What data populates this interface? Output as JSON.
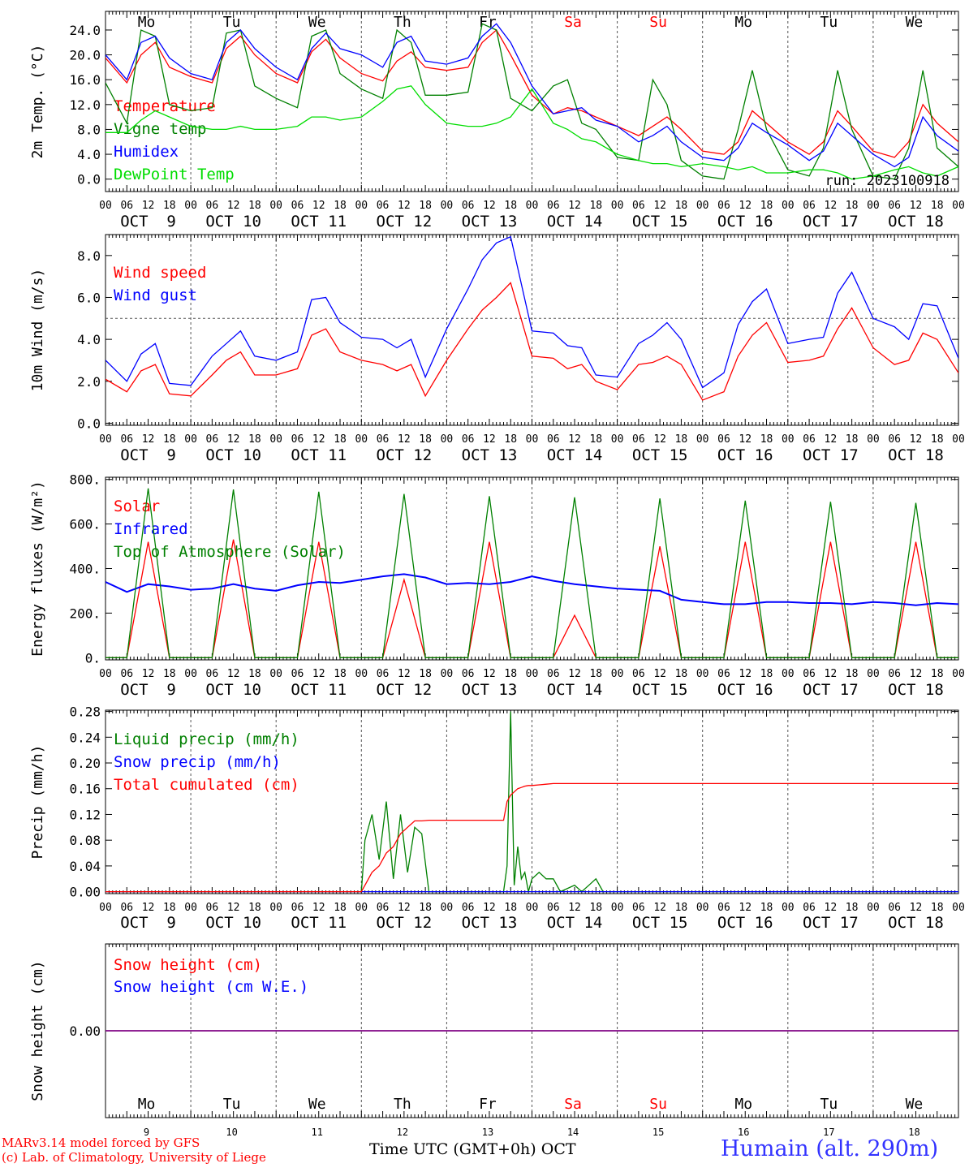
{
  "credits": [
    "MARv3.14 model forced by GFS",
    "(c) Lab. of Climatology, University of Liege"
  ],
  "station": "Humain (alt. 290m)",
  "xaxis_label": "Time UTC (GMT+0h)",
  "month": "OCT",
  "run_label": "run: 2023100918",
  "days": [
    {
      "weekday": "Mo",
      "date": "OCT  9",
      "num": "9",
      "weekend": false
    },
    {
      "weekday": "Tu",
      "date": "OCT 10",
      "num": "10",
      "weekend": false
    },
    {
      "weekday": "We",
      "date": "OCT 11",
      "num": "11",
      "weekend": false
    },
    {
      "weekday": "Th",
      "date": "OCT 12",
      "num": "12",
      "weekend": false
    },
    {
      "weekday": "Fr",
      "date": "OCT 13",
      "num": "13",
      "weekend": false
    },
    {
      "weekday": "Sa",
      "date": "OCT 14",
      "num": "14",
      "weekend": true
    },
    {
      "weekday": "Su",
      "date": "OCT 15",
      "num": "15",
      "weekend": true
    },
    {
      "weekday": "Mo",
      "date": "OCT 16",
      "num": "16",
      "weekend": false
    },
    {
      "weekday": "Tu",
      "date": "OCT 17",
      "num": "17",
      "weekend": false
    },
    {
      "weekday": "We",
      "date": "OCT 18",
      "num": "18",
      "weekend": false
    }
  ],
  "hour_ticks": [
    "00",
    "06",
    "12",
    "18"
  ],
  "final_tick": "00",
  "colors": {
    "red": "#ff0000",
    "blue": "#0000ff",
    "green": "#008000",
    "lightgreen": "#00dd00",
    "purple": "#800080",
    "station": "#3333ff",
    "weekday": "#000000",
    "weekend": "#ff0000"
  },
  "chart_data": [
    {
      "type": "line",
      "ylabel": "2m Temp. (°C)",
      "ylim": [
        -2,
        27
      ],
      "yticks": [
        "0.0",
        "4.0",
        "8.0",
        "12.0",
        "16.0",
        "20.0",
        "24.0"
      ],
      "ytick_values": [
        0,
        4,
        8,
        12,
        16,
        20,
        24
      ],
      "weekday_labels": "top",
      "x_hours": [
        0,
        6,
        10,
        14,
        18,
        24,
        30,
        34,
        38,
        42,
        48,
        54,
        58,
        62,
        66,
        72,
        78,
        82,
        86,
        90,
        96,
        102,
        106,
        110,
        114,
        120,
        126,
        130,
        134,
        138,
        144,
        150,
        154,
        158,
        162,
        168,
        174,
        178,
        182,
        186,
        192,
        198,
        202,
        206,
        210,
        216,
        222,
        226,
        230,
        234,
        240
      ],
      "series": [
        {
          "name": "Temperature",
          "color": "#ff0000",
          "values": [
            19.5,
            15.5,
            20,
            22,
            18,
            16.5,
            15.5,
            21,
            23,
            20,
            17,
            15.5,
            20.5,
            22.5,
            19.5,
            17,
            15.8,
            19,
            20.5,
            18,
            17.5,
            18,
            22,
            24,
            20,
            13.5,
            10.5,
            11.5,
            11,
            10,
            8.5,
            7,
            8.5,
            10,
            8,
            4.5,
            4,
            6,
            11,
            9,
            6,
            4,
            6,
            11,
            8.5,
            4.5,
            3.5,
            6,
            12,
            9,
            6
          ]
        },
        {
          "name": "Vigne temp",
          "color": "#008000",
          "values": [
            15.5,
            9,
            24,
            23,
            12,
            11,
            11.5,
            23.5,
            24,
            15,
            13,
            11.5,
            23,
            24,
            17,
            14.5,
            13,
            24,
            22,
            13.5,
            13.5,
            14,
            25,
            24,
            13,
            11,
            15,
            16,
            9,
            8,
            3.5,
            3,
            16,
            12,
            3,
            0.5,
            0,
            8,
            17.5,
            8,
            1.5,
            0.5,
            5,
            17.5,
            8,
            0.5,
            0,
            5,
            17.5,
            5,
            2
          ]
        },
        {
          "name": "Humidex",
          "color": "#0000ff",
          "values": [
            20,
            16,
            22,
            23,
            19.5,
            17,
            16,
            22,
            24,
            21,
            18,
            16,
            21,
            23.5,
            21,
            20,
            18,
            22,
            23,
            19,
            18.5,
            19.5,
            23,
            25,
            22,
            15,
            10.5,
            11,
            11.5,
            9.5,
            8.5,
            6,
            7,
            8.5,
            6,
            3.5,
            3,
            5,
            9,
            7.5,
            5.5,
            3,
            4.5,
            9,
            7,
            4,
            2,
            3.5,
            10,
            7,
            4.5
          ]
        },
        {
          "name": "DewPoint Temp",
          "color": "#00dd00",
          "values": [
            7.5,
            7.5,
            9.5,
            11,
            10,
            8.5,
            8,
            8,
            8.5,
            8,
            8,
            8.5,
            10,
            10,
            9.5,
            10,
            12.5,
            14.5,
            15,
            12,
            9,
            8.5,
            8.5,
            9,
            10,
            14.5,
            9,
            8,
            6.5,
            6,
            4,
            3,
            2.5,
            2.5,
            2,
            2.5,
            2,
            1.5,
            2,
            1,
            1,
            1.5,
            1.5,
            1,
            0,
            0.5,
            1.5,
            2,
            1,
            0.5,
            2
          ]
        }
      ]
    },
    {
      "type": "line",
      "ylabel": "10m Wind (m/s)",
      "ylim": [
        -0.1,
        9
      ],
      "yticks": [
        "0.0",
        "2.0",
        "4.0",
        "6.0",
        "8.0"
      ],
      "ytick_values": [
        0,
        2,
        4,
        6,
        8
      ],
      "reference_line": 5,
      "x_hours": [
        0,
        6,
        10,
        14,
        18,
        24,
        30,
        34,
        38,
        42,
        48,
        54,
        58,
        62,
        66,
        72,
        78,
        82,
        86,
        90,
        96,
        102,
        106,
        110,
        114,
        120,
        126,
        130,
        134,
        138,
        144,
        150,
        154,
        158,
        162,
        168,
        174,
        178,
        182,
        186,
        192,
        198,
        202,
        206,
        210,
        216,
        222,
        226,
        230,
        234,
        240
      ],
      "series": [
        {
          "name": "Wind speed",
          "color": "#ff0000",
          "values": [
            2.1,
            1.5,
            2.5,
            2.8,
            1.4,
            1.3,
            2.3,
            3,
            3.4,
            2.3,
            2.3,
            2.6,
            4.2,
            4.5,
            3.4,
            3,
            2.8,
            2.5,
            2.8,
            1.3,
            3,
            4.5,
            5.4,
            6,
            6.7,
            3.2,
            3.1,
            2.6,
            2.8,
            2,
            1.6,
            2.8,
            2.9,
            3.2,
            2.8,
            1.1,
            1.5,
            3.2,
            4.2,
            4.8,
            2.9,
            3,
            3.2,
            4.5,
            5.5,
            3.6,
            2.8,
            3,
            4.3,
            4,
            2.4
          ]
        },
        {
          "name": "Wind gust",
          "color": "#0000ff",
          "values": [
            3,
            2,
            3.3,
            3.8,
            1.9,
            1.8,
            3.2,
            3.8,
            4.4,
            3.2,
            3,
            3.4,
            5.9,
            6,
            4.8,
            4.1,
            4,
            3.6,
            4,
            2.2,
            4.5,
            6.4,
            7.8,
            8.6,
            8.9,
            4.4,
            4.3,
            3.7,
            3.6,
            2.3,
            2.2,
            3.8,
            4.2,
            4.8,
            4,
            1.7,
            2.4,
            4.7,
            5.8,
            6.4,
            3.8,
            4,
            4.1,
            6.2,
            7.2,
            5,
            4.6,
            4,
            5.7,
            5.6,
            3.1
          ]
        }
      ]
    },
    {
      "type": "line",
      "ylabel": "Energy fluxes (W/m²)",
      "ylim": [
        -10,
        810
      ],
      "yticks": [
        "0.",
        "200.",
        "400.",
        "600.",
        "800."
      ],
      "ytick_values": [
        0,
        200,
        400,
        600,
        800
      ],
      "x_hours": [
        0,
        6,
        12,
        18,
        24,
        30,
        36,
        42,
        48,
        54,
        60,
        66,
        72,
        78,
        84,
        90,
        96,
        102,
        108,
        114,
        120,
        126,
        132,
        138,
        144,
        150,
        156,
        162,
        168,
        174,
        180,
        186,
        192,
        198,
        204,
        210,
        216,
        222,
        228,
        234,
        240
      ],
      "series": [
        {
          "name": "Solar",
          "color": "#ff0000",
          "values": [
            0,
            0,
            520,
            0,
            0,
            0,
            530,
            0,
            0,
            0,
            520,
            0,
            0,
            0,
            350,
            0,
            0,
            0,
            520,
            0,
            0,
            0,
            190,
            0,
            0,
            0,
            500,
            0,
            0,
            0,
            520,
            0,
            0,
            0,
            520,
            0,
            0,
            0,
            520,
            0,
            0
          ]
        },
        {
          "name": "Infrared",
          "color": "#0000ff",
          "values": [
            340,
            295,
            330,
            320,
            305,
            310,
            330,
            310,
            300,
            325,
            340,
            335,
            350,
            365,
            375,
            360,
            330,
            335,
            330,
            340,
            365,
            345,
            330,
            320,
            310,
            305,
            300,
            260,
            250,
            240,
            240,
            250,
            250,
            245,
            245,
            240,
            250,
            245,
            235,
            245,
            240
          ]
        },
        {
          "name": "Top of Atmosphere (Solar)",
          "color": "#008000",
          "values": [
            0,
            0,
            760,
            0,
            0,
            0,
            755,
            0,
            0,
            0,
            745,
            0,
            0,
            0,
            735,
            0,
            0,
            0,
            725,
            0,
            0,
            0,
            720,
            0,
            0,
            0,
            715,
            0,
            0,
            0,
            705,
            0,
            0,
            0,
            700,
            0,
            0,
            0,
            695,
            0,
            0
          ]
        }
      ]
    },
    {
      "type": "line",
      "ylabel": "Precip (mm/h)",
      "ylim": [
        -0.003,
        0.282
      ],
      "yticks": [
        "0.00",
        "0.04",
        "0.08",
        "0.12",
        "0.16",
        "0.20",
        "0.24",
        "0.28"
      ],
      "ytick_values": [
        0,
        0.04,
        0.08,
        0.12,
        0.16,
        0.2,
        0.24,
        0.28
      ],
      "x_hours": [
        0,
        72,
        73,
        75,
        77,
        79,
        81,
        83,
        85,
        87,
        89,
        91,
        93,
        96,
        112,
        113,
        114,
        115,
        116,
        117,
        118,
        119,
        120,
        122,
        124,
        126,
        128,
        132,
        134,
        136,
        138,
        140,
        142,
        144,
        240
      ],
      "series": [
        {
          "name": "Liquid precip (mm/h)",
          "color": "#008000",
          "values": [
            0,
            0,
            0.08,
            0.12,
            0.05,
            0.14,
            0.02,
            0.12,
            0.03,
            0.1,
            0.09,
            0,
            0,
            0,
            0,
            0.04,
            0.28,
            0.01,
            0.07,
            0.02,
            0.03,
            0,
            0.02,
            0.03,
            0.02,
            0.02,
            0,
            0.01,
            0,
            0.01,
            0.02,
            0,
            0,
            0,
            0
          ]
        },
        {
          "name": "Snow precip (mm/h)",
          "color": "#0000ff",
          "values": [
            0,
            0,
            0,
            0,
            0,
            0,
            0,
            0,
            0,
            0,
            0,
            0,
            0,
            0,
            0,
            0,
            0,
            0,
            0,
            0,
            0,
            0,
            0,
            0,
            0,
            0,
            0,
            0,
            0,
            0,
            0,
            0,
            0,
            0,
            0
          ]
        },
        {
          "name": "Total cumulated (cm)",
          "color": "#ff0000",
          "values": [
            0,
            0,
            0.01,
            0.03,
            0.04,
            0.06,
            0.07,
            0.09,
            0.1,
            0.11,
            0.11,
            0.111,
            0.111,
            0.111,
            0.111,
            0.14,
            0.15,
            0.155,
            0.16,
            0.162,
            0.164,
            0.165,
            0.165,
            0.166,
            0.167,
            0.168,
            0.168,
            0.168,
            0.168,
            0.168,
            0.168,
            0.168,
            0.168,
            0.168,
            0.168
          ]
        }
      ]
    },
    {
      "type": "line",
      "ylabel": "Snow height (cm)",
      "ylim": [
        -1,
        1
      ],
      "yticks": [
        "0.00"
      ],
      "ytick_values": [
        0
      ],
      "weekday_labels": "bottom",
      "x_hours": [
        0,
        240
      ],
      "series": [
        {
          "name": "Snow height (cm)",
          "color": "#ff0000",
          "values": [
            0,
            0
          ]
        },
        {
          "name": "Snow height (cm W.E.)",
          "color": "#0000ff",
          "values": [
            0,
            0
          ]
        }
      ]
    }
  ]
}
